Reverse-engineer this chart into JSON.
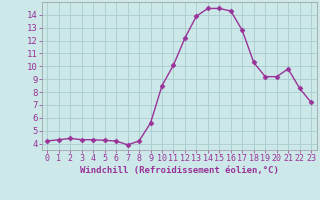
{
  "x": [
    0,
    1,
    2,
    3,
    4,
    5,
    6,
    7,
    8,
    9,
    10,
    11,
    12,
    13,
    14,
    15,
    16,
    17,
    18,
    19,
    20,
    21,
    22,
    23
  ],
  "y": [
    4.2,
    4.3,
    4.4,
    4.3,
    4.3,
    4.25,
    4.2,
    3.9,
    4.2,
    5.6,
    8.5,
    10.1,
    12.2,
    13.9,
    14.5,
    14.5,
    14.3,
    12.8,
    10.3,
    9.2,
    9.2,
    9.8,
    8.3,
    7.2
  ],
  "line_color": "#993399",
  "marker": "D",
  "marker_size": 2.5,
  "bg_color": "#cce8e8",
  "grid_color": "#aacccc",
  "xlabel": "Windchill (Refroidissement éolien,°C)",
  "xlim": [
    -0.5,
    23.5
  ],
  "ylim": [
    3.5,
    15.0
  ],
  "yticks": [
    4,
    5,
    6,
    7,
    8,
    9,
    10,
    11,
    12,
    13,
    14
  ],
  "tick_color": "#993399",
  "tick_fontsize": 6.0,
  "xlabel_fontsize": 6.5
}
